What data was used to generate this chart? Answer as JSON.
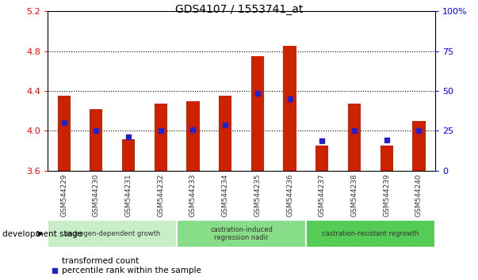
{
  "title": "GDS4107 / 1553741_at",
  "samples": [
    "GSM544229",
    "GSM544230",
    "GSM544231",
    "GSM544232",
    "GSM544233",
    "GSM544234",
    "GSM544235",
    "GSM544236",
    "GSM544237",
    "GSM544238",
    "GSM544239",
    "GSM544240"
  ],
  "red_values": [
    4.35,
    4.22,
    3.92,
    4.27,
    4.3,
    4.35,
    4.75,
    4.85,
    3.85,
    4.27,
    3.85,
    4.1
  ],
  "blue_values": [
    4.08,
    4.0,
    3.94,
    4.0,
    4.01,
    4.06,
    4.38,
    4.32,
    3.9,
    4.0,
    3.91,
    4.0
  ],
  "ymin": 3.6,
  "ymax": 5.2,
  "yticks": [
    3.6,
    4.0,
    4.4,
    4.8,
    5.2
  ],
  "right_yticks": [
    0,
    25,
    50,
    75,
    100
  ],
  "bar_color": "#cc2200",
  "blue_color": "#2222cc",
  "plot_bg": "#ffffff",
  "grid_color": "#000000",
  "tick_bg_color": "#c8c8c8",
  "group1_color": "#c8eec8",
  "group2_color": "#88dd88",
  "group3_color": "#55cc55",
  "group1_label": "androgen-dependent growth",
  "group2_label": "castration-induced\nregression nadir",
  "group3_label": "castration-resistant regrowth",
  "dev_stage_label": "development stage",
  "legend_red": "transformed count",
  "legend_blue": "percentile rank within the sample"
}
